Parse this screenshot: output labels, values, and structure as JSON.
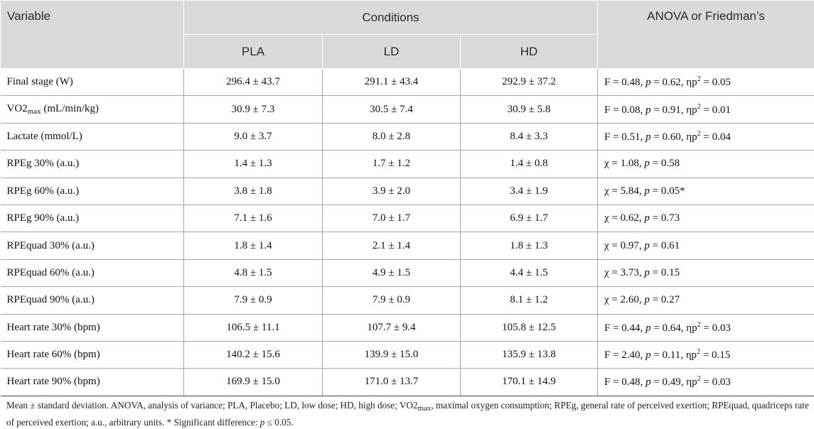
{
  "header": {
    "variable": "Variable",
    "conditions": "Conditions",
    "anova": "ANOVA or Friedman’s",
    "cols": [
      "PLA",
      "LD",
      "HD"
    ]
  },
  "rows": [
    {
      "var": "Final stage (W)",
      "pla": "296.4 ± 43.7",
      "ld": "291.1 ± 43.4",
      "hd": "292.9 ± 37.2",
      "stat": "F = 0.48, p = 0.62, ηp² = 0.05"
    },
    {
      "var": "VO2max (mL/min/kg)",
      "pla": "30.9 ± 7.3",
      "ld": "30.5 ± 7.4",
      "hd": "30.9 ± 5.8",
      "stat": "F = 0.08, p = 0.91, ηp² = 0.01"
    },
    {
      "var": "Lactate (mmol/L)",
      "pla": "9.0 ± 3.7",
      "ld": "8.0 ± 2.8",
      "hd": "8.4 ± 3.3",
      "stat": "F = 0.51, p = 0.60, ηp² = 0.04"
    },
    {
      "var": "RPEg 30% (a.u.)",
      "pla": "1.4 ± 1.3",
      "ld": "1.7 ± 1.2",
      "hd": "1.4 ± 0.8",
      "stat": "χ = 1.08, p = 0.58"
    },
    {
      "var": "RPEg 60% (a.u.)",
      "pla": "3.8 ± 1.8",
      "ld": "3.9 ± 2.0",
      "hd": "3.4 ± 1.9",
      "stat": "χ = 5.84, p = 0.05*"
    },
    {
      "var": "RPEg 90% (a.u.)",
      "pla": "7.1 ± 1.6",
      "ld": "7.0 ± 1.7",
      "hd": "6.9 ± 1.7",
      "stat": "χ = 0.62, p = 0.73"
    },
    {
      "var": "RPEquad 30% (a.u.)",
      "pla": "1.8 ± 1.4",
      "ld": "2.1 ± 1.4",
      "hd": "1.8 ± 1.3",
      "stat": "χ = 0.97, p = 0.61"
    },
    {
      "var": "RPEquad 60% (a.u.)",
      "pla": "4.8 ± 1.5",
      "ld": "4.9 ± 1.5",
      "hd": "4.4 ± 1.5",
      "stat": "χ = 3.73, p = 0.15"
    },
    {
      "var": "RPEquad 90% (a.u.)",
      "pla": "7.9 ± 0.9",
      "ld": "7.9 ± 0.9",
      "hd": "8.1 ± 1.2",
      "stat": "χ = 2.60, p = 0.27"
    },
    {
      "var": "Heart rate 30% (bpm)",
      "pla": "106.5 ± 11.1",
      "ld": "107.7 ± 9.4",
      "hd": "105.8 ± 12.5",
      "stat": "F = 0.44, p = 0.64, ηp² = 0.03"
    },
    {
      "var": "Heart rate 60% (bpm)",
      "pla": "140.2 ± 15.6",
      "ld": "139.9 ± 15.0",
      "hd": "135.9 ± 13.8",
      "stat": "F = 2.40, p = 0.11, ηp² = 0.15"
    },
    {
      "var": "Heart rate 90% (bpm)",
      "pla": "169.9 ± 15.0",
      "ld": "171.0 ± 13.7",
      "hd": "170.1 ± 14.9",
      "stat": "F = 0.48, p = 0.49, ηp² = 0.03"
    }
  ],
  "footnote": "Mean ± standard deviation. ANOVA, analysis of variance; PLA, Placebo; LD, low dose; HD, high dose; VO2max, maximal oxygen consumption; RPEg, general rate of perceived exertion; RPEquad, quadriceps rate of perceived exertion; a.u., arbitrary units. * Significant difference: p ≤ 0.05."
}
